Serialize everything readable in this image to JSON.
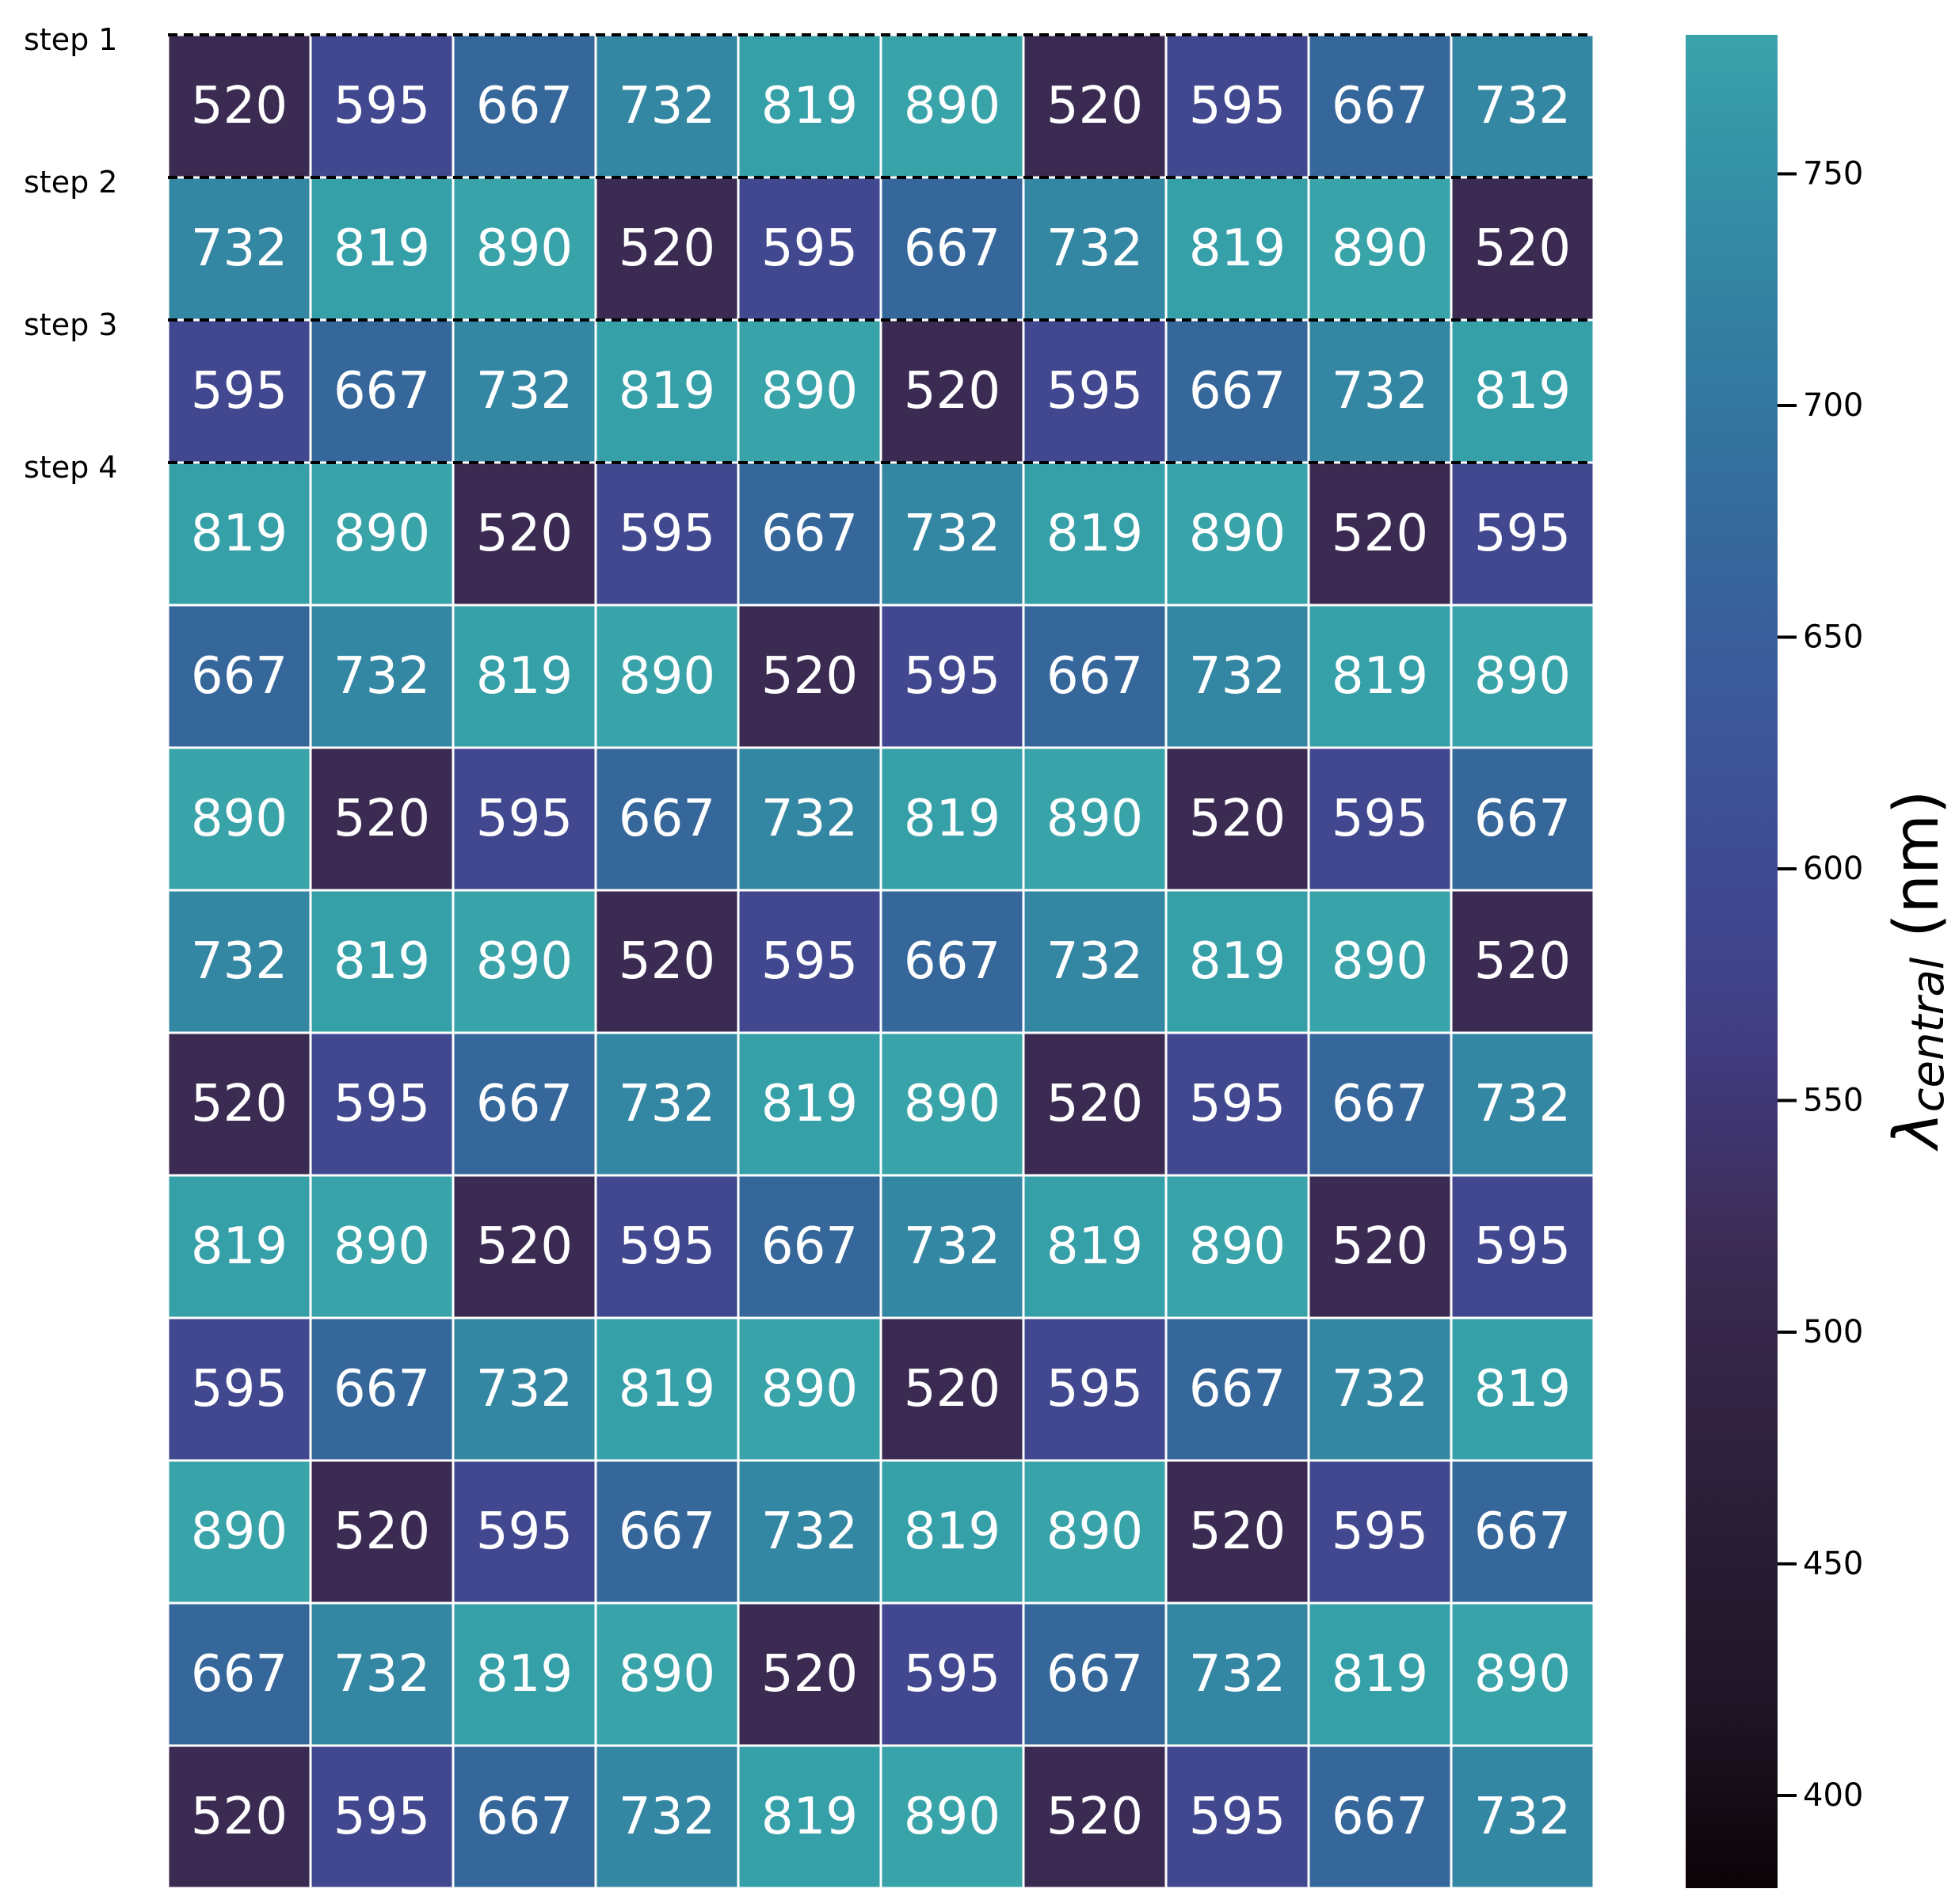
{
  "chart_data": {
    "type": "heatmap",
    "title": "",
    "xlabel": "",
    "ylabel": "",
    "rows": 13,
    "cols": 10,
    "row_labels": [
      "step 1",
      "step 2",
      "step 3",
      "step 4",
      "",
      "",
      "",
      "",
      "",
      "",
      "",
      "",
      ""
    ],
    "values": [
      [
        520,
        595,
        667,
        732,
        819,
        890,
        520,
        595,
        667,
        732
      ],
      [
        732,
        819,
        890,
        520,
        595,
        667,
        732,
        819,
        890,
        520
      ],
      [
        595,
        667,
        732,
        819,
        890,
        520,
        595,
        667,
        732,
        819
      ],
      [
        819,
        890,
        520,
        595,
        667,
        732,
        819,
        890,
        520,
        595
      ],
      [
        667,
        732,
        819,
        890,
        520,
        595,
        667,
        732,
        819,
        890
      ],
      [
        890,
        520,
        595,
        667,
        732,
        819,
        890,
        520,
        595,
        667
      ],
      [
        732,
        819,
        890,
        520,
        595,
        667,
        732,
        819,
        890,
        520
      ],
      [
        520,
        595,
        667,
        732,
        819,
        890,
        520,
        595,
        667,
        732
      ],
      [
        819,
        890,
        520,
        595,
        667,
        732,
        819,
        890,
        520,
        595
      ],
      [
        595,
        667,
        732,
        819,
        890,
        520,
        595,
        667,
        732,
        819
      ],
      [
        890,
        520,
        595,
        667,
        732,
        819,
        890,
        520,
        595,
        667
      ],
      [
        667,
        732,
        819,
        890,
        520,
        595,
        667,
        732,
        819,
        890
      ],
      [
        520,
        595,
        667,
        732,
        819,
        890,
        520,
        595,
        667,
        732
      ]
    ],
    "cell_colors": {
      "520": "#3b2b52",
      "595": "#41488f",
      "667": "#35679b",
      "732": "#3487a2",
      "819": "#36a0a9",
      "890": "#39a3aa"
    },
    "dashed_row_separators": [
      0,
      1,
      2,
      3
    ],
    "colorbar": {
      "label_symbol": "λ",
      "label_subscript": "central",
      "label_unit": "(nm)",
      "range": [
        380,
        780
      ],
      "ticks": [
        400,
        450,
        500,
        550,
        600,
        650,
        700,
        750
      ],
      "stops": [
        {
          "value": 380,
          "color": "#0b0306"
        },
        {
          "value": 420,
          "color": "#1e1626"
        },
        {
          "value": 480,
          "color": "#30223f"
        },
        {
          "value": 520,
          "color": "#3c2c56"
        },
        {
          "value": 560,
          "color": "#413c80"
        },
        {
          "value": 600,
          "color": "#3f4b94"
        },
        {
          "value": 650,
          "color": "#3a5e9b"
        },
        {
          "value": 700,
          "color": "#33769f"
        },
        {
          "value": 750,
          "color": "#3491a6"
        },
        {
          "value": 780,
          "color": "#3aa3aa"
        }
      ]
    }
  }
}
